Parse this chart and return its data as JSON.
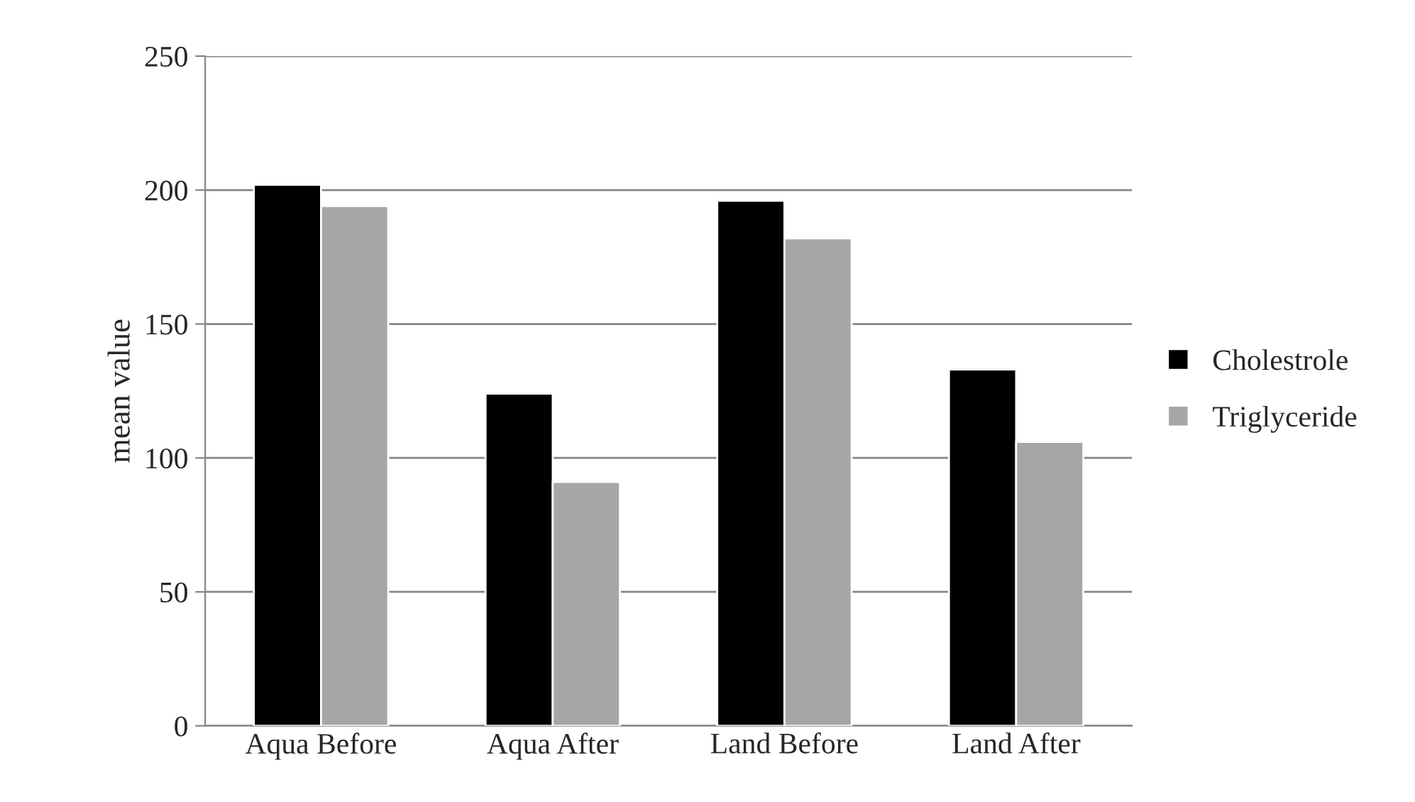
{
  "chart_data": {
    "type": "bar",
    "ylabel": "mean value",
    "categories": [
      "Aqua Before",
      "Aqua After",
      "Land Before",
      "Land After"
    ],
    "series": [
      {
        "name": "Cholestrole",
        "color": "#000000",
        "values": [
          202,
          124,
          196,
          133
        ]
      },
      {
        "name": "Triglyceride",
        "color": "#a6a6a6",
        "values": [
          194,
          91,
          182,
          106
        ]
      }
    ],
    "ylim": [
      0,
      250
    ],
    "yticks": [
      0,
      50,
      100,
      150,
      200,
      250
    ],
    "grid": "y",
    "legend": "right"
  }
}
